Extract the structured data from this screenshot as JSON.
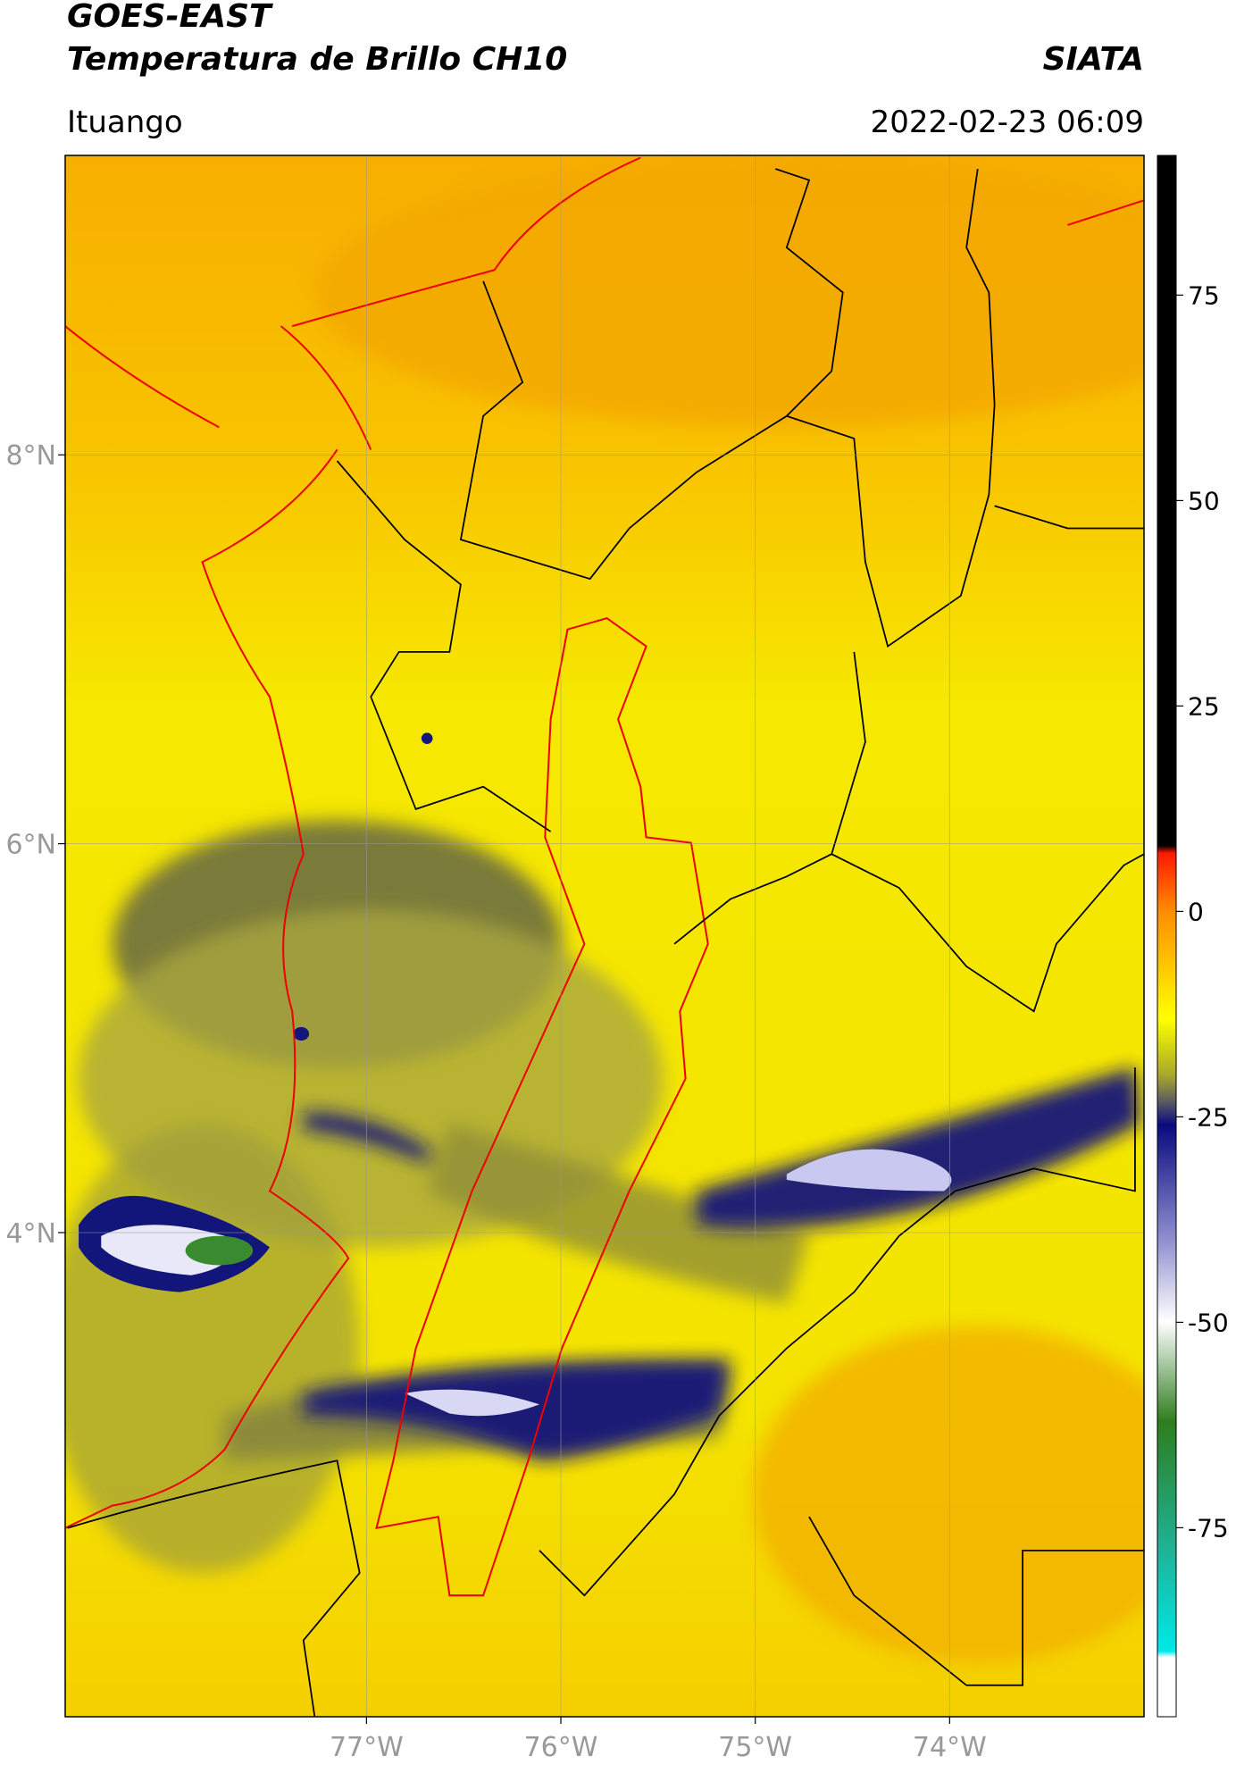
{
  "header": {
    "title": "GOES-EAST",
    "subtitle": "Temperatura de Brillo CH10",
    "source": "SIATA",
    "location": "Ituango",
    "datetime": "2022-02-23 06:09"
  },
  "map": {
    "xlim": [
      -78.55,
      -73.0
    ],
    "ylim": [
      1.51,
      9.54
    ],
    "xticks": [
      {
        "value": -77,
        "label": "77°W"
      },
      {
        "value": -76,
        "label": "76°W"
      },
      {
        "value": -75,
        "label": "75°W"
      },
      {
        "value": -74,
        "label": "74°W"
      }
    ],
    "yticks": [
      {
        "value": 8,
        "label": "8°N"
      },
      {
        "value": 6,
        "label": "6°N"
      },
      {
        "value": 4,
        "label": "4°N"
      }
    ],
    "grid": true
  },
  "colorbar": {
    "lim": [
      -98,
      92
    ],
    "ticks": [
      75,
      50,
      25,
      0,
      -25,
      -50,
      -75
    ]
  }
}
